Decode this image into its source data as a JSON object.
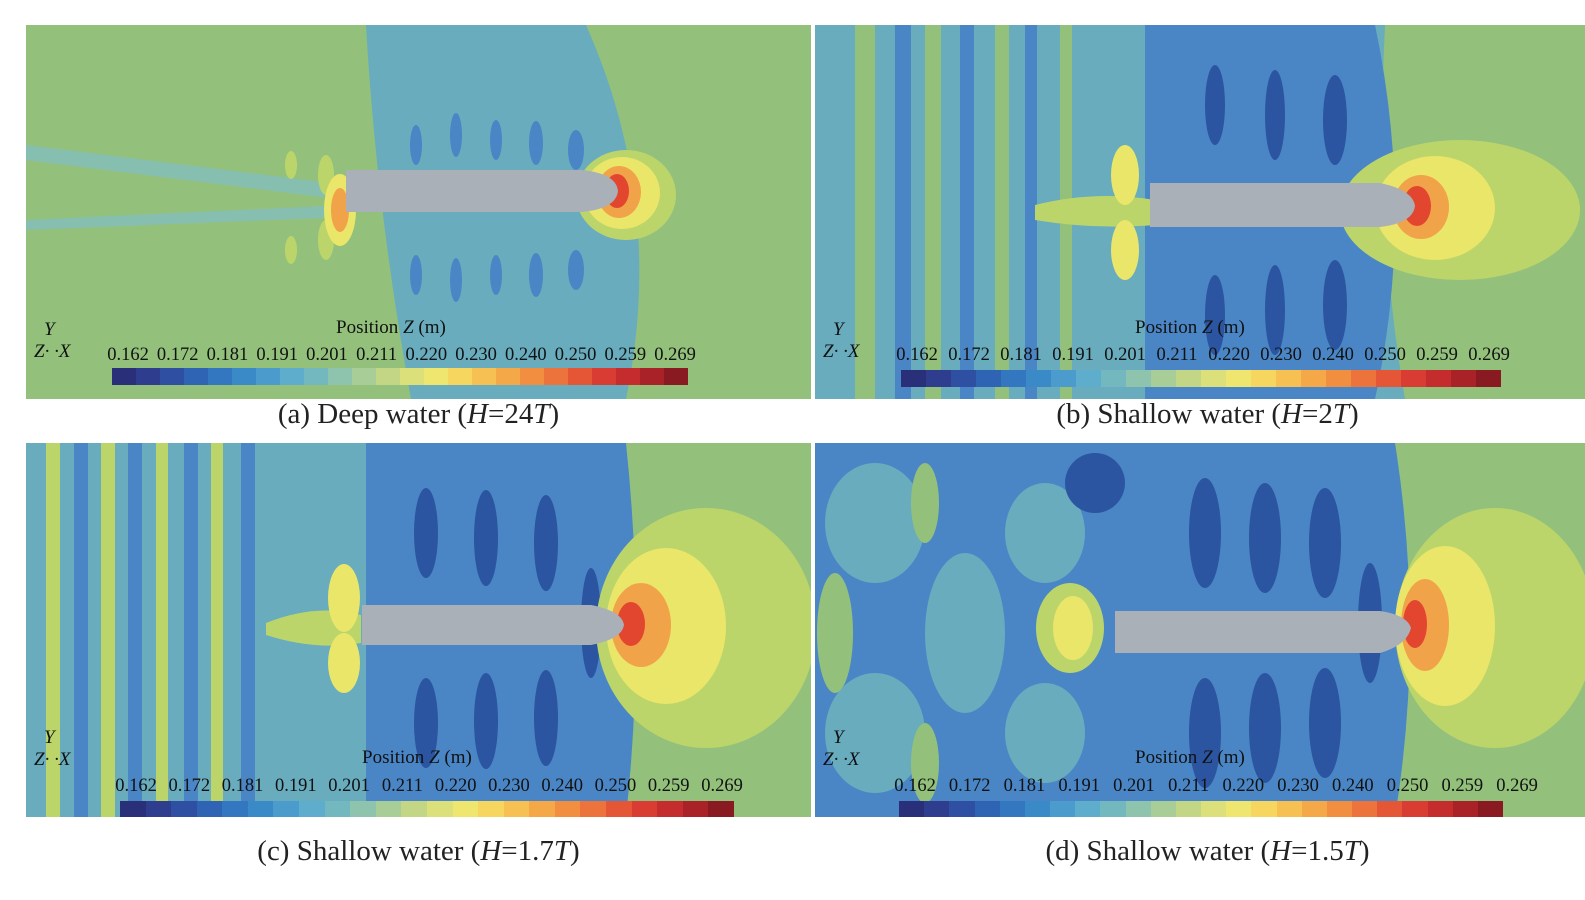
{
  "colorbar": {
    "title": "Position",
    "variable": "Z",
    "unit": "(m)",
    "ticks": [
      "0.162",
      "0.172",
      "0.181",
      "0.191",
      "0.201",
      "0.211",
      "0.220",
      "0.230",
      "0.240",
      "0.250",
      "0.259",
      "0.269"
    ],
    "colors": [
      "#2a2f7a",
      "#2f3d8f",
      "#2f4fa3",
      "#2f63b3",
      "#3277bf",
      "#3a8ac8",
      "#4b9ccc",
      "#5fadcc",
      "#74b8bf",
      "#8ec3ad",
      "#a9cd96",
      "#c3d686",
      "#dbe07a",
      "#efe66f",
      "#f7d65f",
      "#f7c052",
      "#f5a848",
      "#f18e40",
      "#ec733b",
      "#e55637",
      "#d93c33",
      "#c42c2e",
      "#a82228",
      "#8a1a22"
    ],
    "field_colors": {
      "deep": "#2b55a0",
      "mid": "#4a86c5",
      "blue2": "#3d71b8",
      "teal": "#68acbe",
      "aqua": "#86bfb0",
      "green": "#93c17c",
      "lime": "#bcd56a",
      "yellow": "#e9e66a",
      "orange": "#f1a34a",
      "red": "#e3462f",
      "hull": "#a9b0b8"
    }
  },
  "axes": {
    "y": "Y",
    "z": "Z",
    "x": "X"
  },
  "panels": [
    {
      "label": "(a) Deep water (",
      "var": "H",
      "eq": "=24",
      "T": "T",
      ")": ")"
    },
    {
      "label": "(b) Shallow water (",
      "var": "H",
      "eq": "=2",
      "T": "T",
      ")": ")"
    },
    {
      "label": "(c) Shallow water (",
      "var": "H",
      "eq": "=1.7",
      "T": "T",
      ")": ")"
    },
    {
      "label": "(d) Shallow water (",
      "var": "H",
      "eq": "=1.5",
      "T": "T",
      ")": ")"
    }
  ]
}
